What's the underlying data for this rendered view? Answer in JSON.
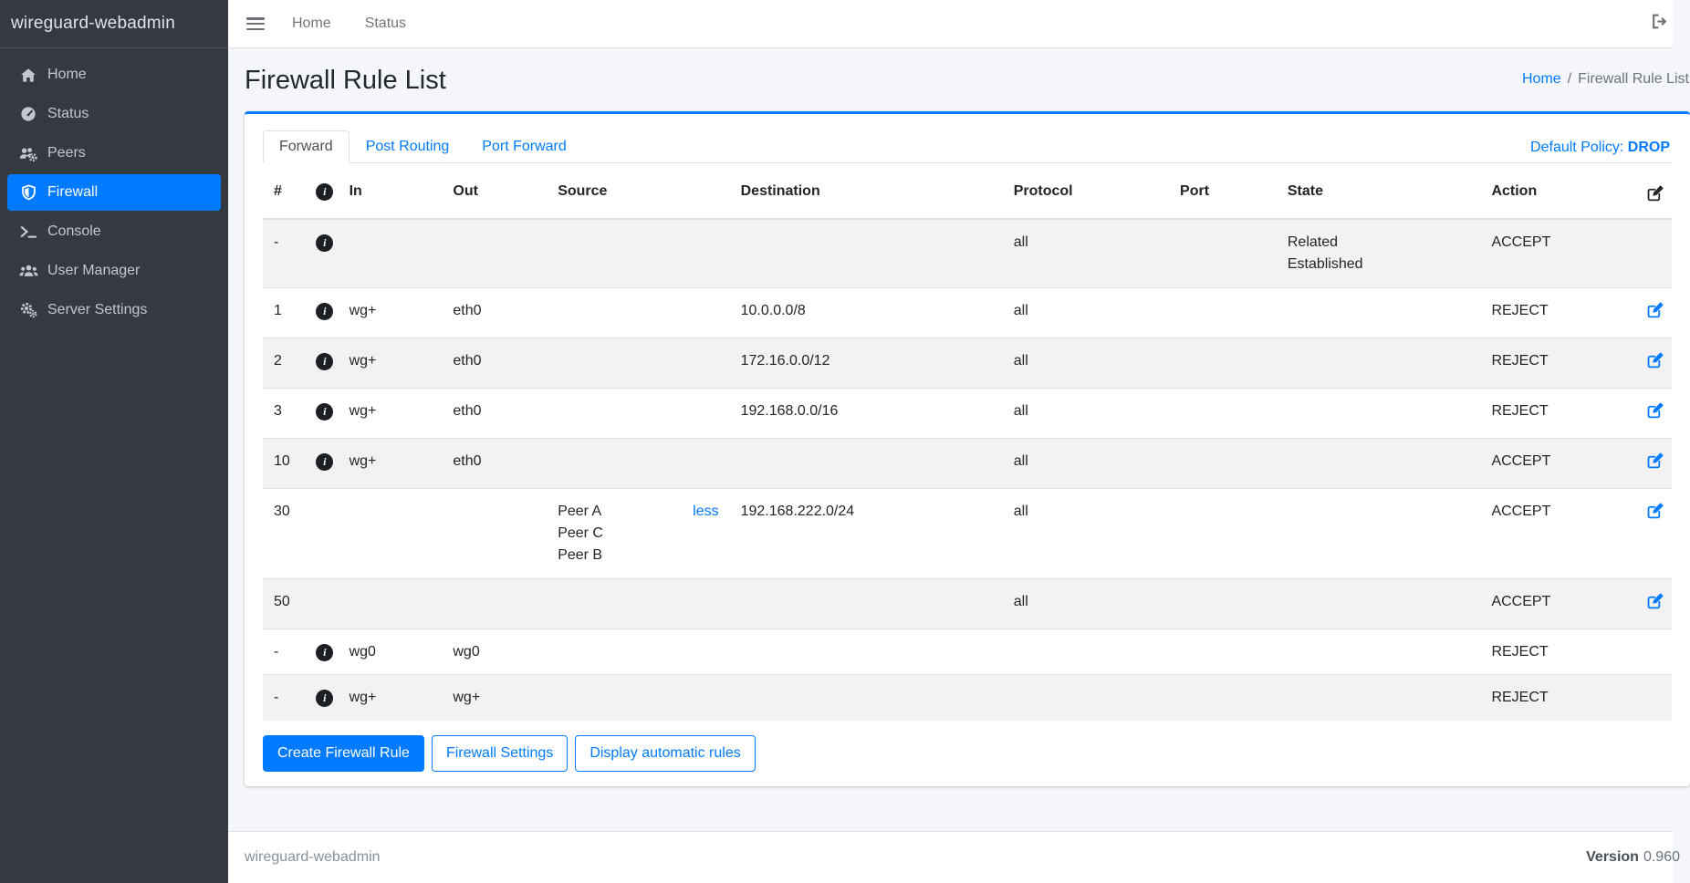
{
  "colors": {
    "accent": "#007bff",
    "sidebar_bg": "#343a40",
    "sidebar_text": "#c2c7d0",
    "content_bg": "#f4f6f9",
    "border": "#dee2e6",
    "stripe": "rgba(0,0,0,0.05)",
    "info_icon_bg": "#1c1f23"
  },
  "sidebar": {
    "brand": "wireguard-webadmin",
    "items": [
      {
        "label": "Home",
        "icon": "home-icon",
        "active": false
      },
      {
        "label": "Status",
        "icon": "gauge-icon",
        "active": false
      },
      {
        "label": "Peers",
        "icon": "users-gear-icon",
        "active": false
      },
      {
        "label": "Firewall",
        "icon": "shield-icon",
        "active": true
      },
      {
        "label": "Console",
        "icon": "terminal-icon",
        "active": false
      },
      {
        "label": "User Manager",
        "icon": "users-icon",
        "active": false
      },
      {
        "label": "Server Settings",
        "icon": "gears-icon",
        "active": false
      }
    ]
  },
  "topbar": {
    "links": [
      {
        "label": "Home"
      },
      {
        "label": "Status"
      }
    ],
    "icons": [
      "menu-icon",
      "sign-out-icon"
    ]
  },
  "page": {
    "title": "Firewall Rule List",
    "breadcrumb": {
      "home": "Home",
      "separator": "/",
      "current": "Firewall Rule List"
    }
  },
  "card": {
    "tabs": [
      {
        "label": "Forward",
        "active": true
      },
      {
        "label": "Post Routing",
        "active": false
      },
      {
        "label": "Port Forward",
        "active": false
      }
    ],
    "default_policy": {
      "label": "Default Policy:",
      "value": "DROP"
    },
    "table": {
      "headers": [
        {
          "type": "text",
          "label": "#"
        },
        {
          "type": "icon",
          "icon": "info-icon"
        },
        {
          "type": "text",
          "label": "In"
        },
        {
          "type": "text",
          "label": "Out"
        },
        {
          "type": "text",
          "label": "Source"
        },
        {
          "type": "text",
          "label": "Destination"
        },
        {
          "type": "text",
          "label": "Protocol"
        },
        {
          "type": "text",
          "label": "Port"
        },
        {
          "type": "text",
          "label": "State"
        },
        {
          "type": "text",
          "label": "Action"
        },
        {
          "type": "icon",
          "icon": "edit-icon"
        }
      ],
      "rows": [
        {
          "num": "-",
          "info": true,
          "in": "",
          "out": "",
          "source": [],
          "less_label": "",
          "destination": "",
          "protocol": "all",
          "port": "",
          "state": [
            "Related",
            "Established"
          ],
          "action": "ACCEPT",
          "has_edit": false
        },
        {
          "num": "1",
          "info": true,
          "in": "wg+",
          "out": "eth0",
          "source": [],
          "less_label": "",
          "destination": "10.0.0.0/8",
          "protocol": "all",
          "port": "",
          "state": [],
          "action": "REJECT",
          "has_edit": true
        },
        {
          "num": "2",
          "info": true,
          "in": "wg+",
          "out": "eth0",
          "source": [],
          "less_label": "",
          "destination": "172.16.0.0/12",
          "protocol": "all",
          "port": "",
          "state": [],
          "action": "REJECT",
          "has_edit": true
        },
        {
          "num": "3",
          "info": true,
          "in": "wg+",
          "out": "eth0",
          "source": [],
          "less_label": "",
          "destination": "192.168.0.0/16",
          "protocol": "all",
          "port": "",
          "state": [],
          "action": "REJECT",
          "has_edit": true
        },
        {
          "num": "10",
          "info": true,
          "in": "wg+",
          "out": "eth0",
          "source": [],
          "less_label": "",
          "destination": "",
          "protocol": "all",
          "port": "",
          "state": [],
          "action": "ACCEPT",
          "has_edit": true
        },
        {
          "num": "30",
          "info": false,
          "in": "",
          "out": "",
          "source": [
            "Peer A",
            "Peer C",
            "Peer B"
          ],
          "less_label": "less",
          "destination": "192.168.222.0/24",
          "protocol": "all",
          "port": "",
          "state": [],
          "action": "ACCEPT",
          "has_edit": true
        },
        {
          "num": "50",
          "info": false,
          "in": "",
          "out": "",
          "source": [],
          "less_label": "",
          "destination": "",
          "protocol": "all",
          "port": "",
          "state": [],
          "action": "ACCEPT",
          "has_edit": true
        },
        {
          "num": "-",
          "info": true,
          "in": "wg0",
          "out": "wg0",
          "source": [],
          "less_label": "",
          "destination": "",
          "protocol": "",
          "port": "",
          "state": [],
          "action": "REJECT",
          "has_edit": false
        },
        {
          "num": "-",
          "info": true,
          "in": "wg+",
          "out": "wg+",
          "source": [],
          "less_label": "",
          "destination": "",
          "protocol": "",
          "port": "",
          "state": [],
          "action": "REJECT",
          "has_edit": false
        }
      ]
    },
    "buttons": [
      {
        "label": "Create Firewall Rule",
        "style": "solid"
      },
      {
        "label": "Firewall Settings",
        "style": "outline"
      },
      {
        "label": "Display automatic rules",
        "style": "outline"
      }
    ]
  },
  "footer": {
    "brand": "wireguard-webadmin",
    "version_label": "Version",
    "version_value": "0.960"
  }
}
